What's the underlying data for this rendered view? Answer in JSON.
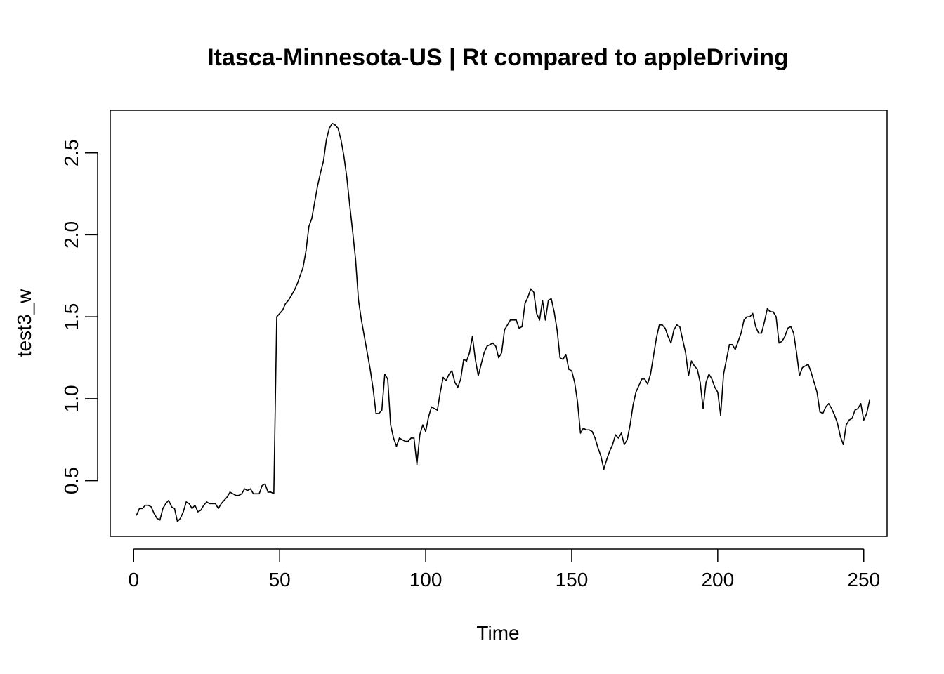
{
  "chart_data": {
    "type": "line",
    "title": "Itasca-Minnesota-US | Rt compared to appleDriving",
    "xlabel": "Time",
    "ylabel": "test3_w",
    "xlim": [
      -8,
      258
    ],
    "ylim": [
      0.16,
      2.76
    ],
    "x_ticks": [
      0,
      50,
      100,
      150,
      200,
      250
    ],
    "x_tick_labels": [
      "0",
      "50",
      "100",
      "150",
      "200",
      "250"
    ],
    "y_ticks": [
      0.5,
      1.0,
      1.5,
      2.0,
      2.5
    ],
    "y_tick_labels": [
      "0.5",
      "1.0",
      "1.5",
      "2.0",
      "2.5"
    ],
    "grid": false,
    "legend": "none",
    "line_color": "#000000",
    "series": [
      {
        "x_start": 1,
        "values": [
          0.29,
          0.33,
          0.33,
          0.35,
          0.35,
          0.34,
          0.3,
          0.27,
          0.26,
          0.33,
          0.36,
          0.38,
          0.34,
          0.33,
          0.25,
          0.27,
          0.31,
          0.37,
          0.36,
          0.33,
          0.35,
          0.31,
          0.32,
          0.35,
          0.37,
          0.36,
          0.36,
          0.36,
          0.33,
          0.36,
          0.38,
          0.4,
          0.43,
          0.42,
          0.41,
          0.41,
          0.42,
          0.45,
          0.44,
          0.45,
          0.42,
          0.42,
          0.42,
          0.47,
          0.48,
          0.43,
          0.43,
          0.42,
          1.5,
          1.52,
          1.54,
          1.58,
          1.6,
          1.63,
          1.66,
          1.7,
          1.75,
          1.8,
          1.9,
          2.05,
          2.1,
          2.2,
          2.3,
          2.38,
          2.45,
          2.58,
          2.65,
          2.68,
          2.67,
          2.65,
          2.58,
          2.48,
          2.35,
          2.18,
          2.02,
          1.85,
          1.6,
          1.48,
          1.38,
          1.28,
          1.18,
          1.06,
          0.91,
          0.91,
          0.93,
          1.15,
          1.12,
          0.84,
          0.76,
          0.71,
          0.76,
          0.75,
          0.74,
          0.74,
          0.76,
          0.76,
          0.6,
          0.78,
          0.84,
          0.8,
          0.89,
          0.95,
          0.94,
          0.93,
          1.04,
          1.13,
          1.11,
          1.15,
          1.17,
          1.1,
          1.07,
          1.12,
          1.24,
          1.23,
          1.28,
          1.38,
          1.24,
          1.14,
          1.21,
          1.28,
          1.32,
          1.33,
          1.34,
          1.32,
          1.25,
          1.28,
          1.42,
          1.45,
          1.48,
          1.48,
          1.48,
          1.43,
          1.44,
          1.58,
          1.62,
          1.67,
          1.65,
          1.52,
          1.48,
          1.6,
          1.48,
          1.6,
          1.61,
          1.53,
          1.42,
          1.25,
          1.24,
          1.27,
          1.18,
          1.17,
          1.1,
          0.98,
          0.79,
          0.82,
          0.81,
          0.81,
          0.8,
          0.76,
          0.7,
          0.65,
          0.57,
          0.63,
          0.68,
          0.72,
          0.78,
          0.76,
          0.79,
          0.72,
          0.75,
          0.84,
          0.96,
          1.04,
          1.08,
          1.12,
          1.12,
          1.09,
          1.15,
          1.26,
          1.37,
          1.45,
          1.45,
          1.43,
          1.38,
          1.34,
          1.42,
          1.45,
          1.44,
          1.36,
          1.28,
          1.14,
          1.23,
          1.2,
          1.18,
          1.1,
          0.94,
          1.1,
          1.15,
          1.12,
          1.07,
          1.04,
          0.9,
          1.15,
          1.24,
          1.33,
          1.33,
          1.3,
          1.35,
          1.4,
          1.48,
          1.5,
          1.5,
          1.52,
          1.44,
          1.4,
          1.4,
          1.47,
          1.55,
          1.53,
          1.53,
          1.5,
          1.34,
          1.35,
          1.38,
          1.43,
          1.44,
          1.4,
          1.28,
          1.14,
          1.19,
          1.2,
          1.21,
          1.16,
          1.1,
          1.04,
          0.92,
          0.91,
          0.95,
          0.97,
          0.94,
          0.9,
          0.85,
          0.77,
          0.72,
          0.84,
          0.87,
          0.88,
          0.93,
          0.94,
          0.97,
          0.87,
          0.91,
          0.99
        ]
      }
    ]
  }
}
